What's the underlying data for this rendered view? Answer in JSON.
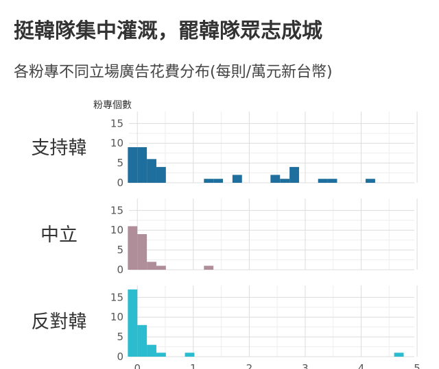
{
  "chart_data": {
    "type": "histogram",
    "title": "挺韓隊集中灌溉，罷韓隊眾志成城",
    "subtitle": "各粉專不同立場廣告花費分布(每則/萬元新台幣)",
    "ylabel": "粉專個數",
    "x_ticks": [
      0,
      1,
      2,
      3,
      4,
      5
    ],
    "y_ticks": [
      0,
      5,
      10,
      15
    ],
    "xlim": [
      -0.15,
      4.95
    ],
    "ylim": [
      0,
      18
    ],
    "bin_width": 0.17,
    "grid": true,
    "panels": [
      {
        "label": "支持韓",
        "color": "#1f6f9e",
        "bins": [
          {
            "x": -0.085,
            "count": 9
          },
          {
            "x": 0.085,
            "count": 9
          },
          {
            "x": 0.255,
            "count": 6
          },
          {
            "x": 0.425,
            "count": 4
          },
          {
            "x": 1.275,
            "count": 1
          },
          {
            "x": 1.445,
            "count": 1
          },
          {
            "x": 1.785,
            "count": 2
          },
          {
            "x": 2.465,
            "count": 2
          },
          {
            "x": 2.635,
            "count": 1
          },
          {
            "x": 2.805,
            "count": 4
          },
          {
            "x": 3.315,
            "count": 1
          },
          {
            "x": 3.485,
            "count": 1
          },
          {
            "x": 4.165,
            "count": 1
          }
        ]
      },
      {
        "label": "中立",
        "color": "#b08e99",
        "bins": [
          {
            "x": -0.085,
            "count": 11
          },
          {
            "x": 0.085,
            "count": 9
          },
          {
            "x": 0.255,
            "count": 2
          },
          {
            "x": 0.425,
            "count": 1
          },
          {
            "x": 1.275,
            "count": 1
          }
        ]
      },
      {
        "label": "反對韓",
        "color": "#2bbcd0",
        "bins": [
          {
            "x": -0.085,
            "count": 17
          },
          {
            "x": 0.085,
            "count": 8
          },
          {
            "x": 0.255,
            "count": 3
          },
          {
            "x": 0.425,
            "count": 1
          },
          {
            "x": 0.935,
            "count": 1
          },
          {
            "x": 4.675,
            "count": 1
          }
        ]
      }
    ]
  }
}
